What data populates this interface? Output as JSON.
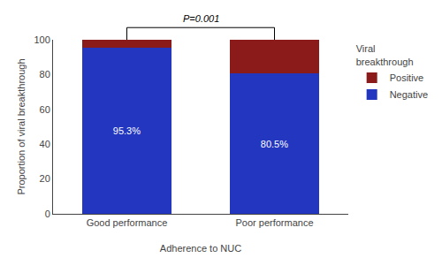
{
  "chart_data": {
    "type": "bar",
    "stacked": true,
    "categories": [
      "Good performance",
      "Poor performance"
    ],
    "series": [
      {
        "name": "Negative",
        "color": "#2236C0",
        "values": [
          95.3,
          80.5
        ],
        "value_labels": [
          "95.3%",
          "80.5%"
        ]
      },
      {
        "name": "Positive",
        "color": "#8B1A1A",
        "values": [
          4.7,
          19.5
        ]
      }
    ],
    "data_labels": true,
    "xlabel": "Adherence to NUC",
    "ylabel": "Proportion of viral breakthrough",
    "ylim": [
      0,
      100
    ],
    "yticks": [
      0,
      20,
      40,
      60,
      80,
      100
    ],
    "grid": false,
    "legend": "right",
    "legend_title": "Viral\nbreakthrough",
    "annotations": [
      {
        "text": "P=0.001"
      }
    ]
  }
}
